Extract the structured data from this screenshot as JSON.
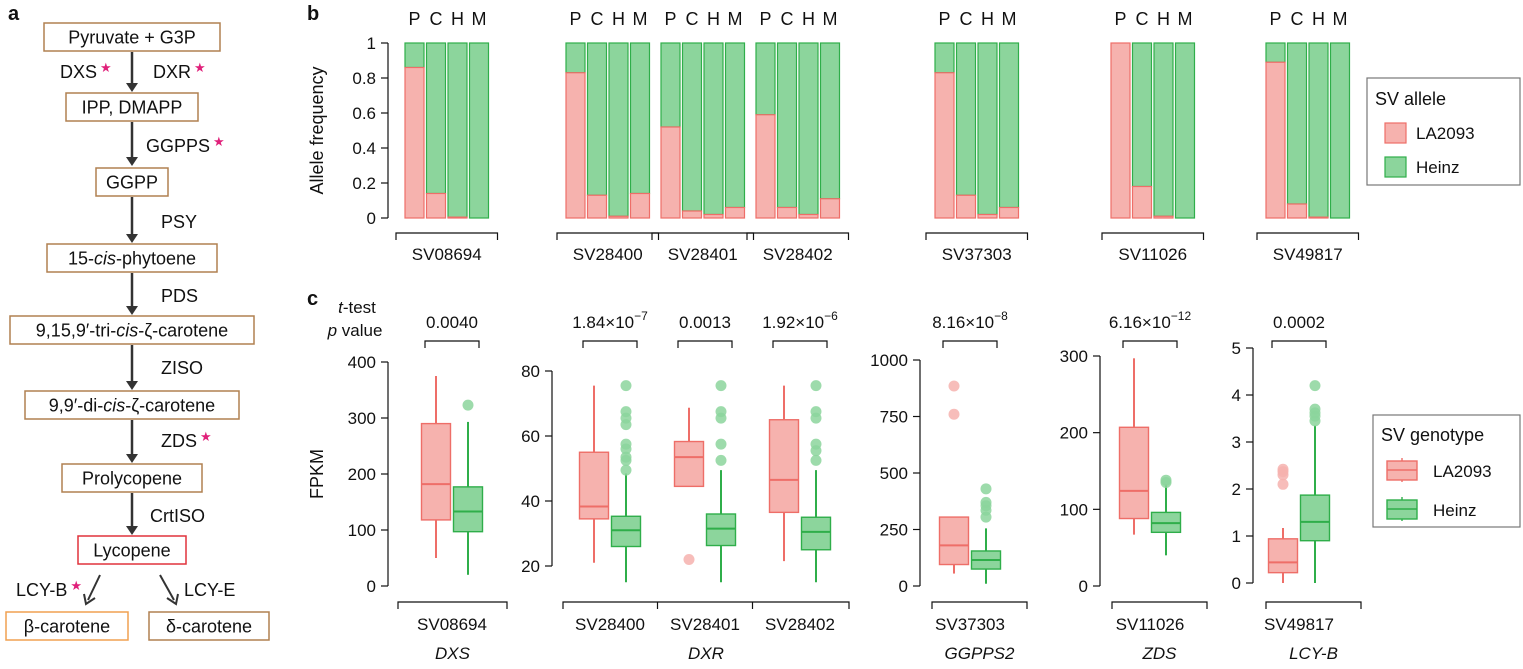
{
  "panel_labels": {
    "a": "a",
    "b": "b",
    "c": "c"
  },
  "pathway": {
    "nodes": [
      {
        "id": "pyruvate",
        "parts": [
          {
            "t": "Pyruvate + G3P"
          }
        ],
        "color": "#b08050"
      },
      {
        "id": "ipp",
        "parts": [
          {
            "t": "IPP, DMAPP"
          }
        ],
        "color": "#b08050"
      },
      {
        "id": "ggpp",
        "parts": [
          {
            "t": "GGPP"
          }
        ],
        "color": "#b08050"
      },
      {
        "id": "phytoene",
        "parts": [
          {
            "t": "15-"
          },
          {
            "t": "cis",
            "i": true
          },
          {
            "t": "-phytoene"
          }
        ],
        "color": "#b08050"
      },
      {
        "id": "tricis",
        "parts": [
          {
            "t": "9,15,9′-tri-"
          },
          {
            "t": "cis",
            "i": true
          },
          {
            "t": "-ζ-carotene"
          }
        ],
        "color": "#b08050"
      },
      {
        "id": "dicis",
        "parts": [
          {
            "t": "9,9′-di-"
          },
          {
            "t": "cis",
            "i": true
          },
          {
            "t": "-ζ-carotene"
          }
        ],
        "color": "#b08050"
      },
      {
        "id": "prolycopene",
        "parts": [
          {
            "t": "Prolycopene"
          }
        ],
        "color": "#b08050"
      },
      {
        "id": "lycopene",
        "parts": [
          {
            "t": "Lycopene"
          }
        ],
        "color": "#e0323c",
        "text_color": "#e0323c"
      },
      {
        "id": "bcarotene",
        "parts": [
          {
            "t": "β-carotene"
          }
        ],
        "color": "#f0a050",
        "text_color": "#f08a30"
      },
      {
        "id": "dcarotene",
        "parts": [
          {
            "t": "δ-carotene"
          }
        ],
        "color": "#b08050"
      }
    ],
    "enzymes": [
      {
        "label": "DXS",
        "star": true
      },
      {
        "label": "DXR",
        "star": true
      },
      {
        "label": "GGPPS",
        "star": true
      },
      {
        "label": "PSY",
        "star": false
      },
      {
        "label": "PDS",
        "star": false
      },
      {
        "label": "ZISO",
        "star": false
      },
      {
        "label": "ZDS",
        "star": true
      },
      {
        "label": "CrtISO",
        "star": false
      },
      {
        "label": "LCY-B",
        "star": true
      },
      {
        "label": "LCY-E",
        "star": false
      }
    ],
    "star_glyph": "★",
    "star_color": "#e0207a"
  },
  "colors": {
    "la2093_fill": "#f6b2ae",
    "la2093_stroke": "#ee6e68",
    "heinz_fill": "#8cd59c",
    "heinz_stroke": "#2fae4a",
    "axis": "#111111"
  },
  "chart_data": [
    {
      "type": "bar",
      "title": "",
      "stacked": true,
      "ylabel": "Allele frequency",
      "ylim": [
        0,
        1
      ],
      "yticks": [
        "0",
        "0.2",
        "0.4",
        "0.6",
        "0.8",
        "1"
      ],
      "population_labels": [
        "P",
        "C",
        "H",
        "M"
      ],
      "series": [
        {
          "name": "LA2093"
        },
        {
          "name": "Heinz"
        }
      ],
      "groups": [
        {
          "sv": "SV08694",
          "la2093": [
            0.86,
            0.14,
            0.005,
            0.0
          ]
        },
        {
          "sv": "SV28400",
          "la2093": [
            0.83,
            0.13,
            0.01,
            0.14
          ]
        },
        {
          "sv": "SV28401",
          "la2093": [
            0.52,
            0.04,
            0.02,
            0.06
          ]
        },
        {
          "sv": "SV28402",
          "la2093": [
            0.59,
            0.06,
            0.02,
            0.11
          ]
        },
        {
          "sv": "SV37303",
          "la2093": [
            0.83,
            0.13,
            0.02,
            0.06
          ]
        },
        {
          "sv": "SV11026",
          "la2093": [
            1.0,
            0.18,
            0.01,
            0.0
          ]
        },
        {
          "sv": "SV49817",
          "la2093": [
            0.89,
            0.08,
            0.005,
            0.0
          ]
        }
      ],
      "legend": {
        "title": "SV allele",
        "entries": [
          "LA2093",
          "Heinz"
        ],
        "position": "right"
      }
    },
    {
      "type": "box",
      "ylabel": "FPKM",
      "test_label_line1_italic": "t",
      "test_label_line1": "-test",
      "test_label_line2_italic": "p",
      "test_label_line2": " value",
      "panels": [
        {
          "gene": "DXS",
          "ylim": [
            0,
            400
          ],
          "yticks": [
            "0",
            "100",
            "200",
            "300",
            "400"
          ],
          "svs": [
            {
              "sv": "SV08694",
              "p": {
                "base": "0.0040",
                "exp": ""
              },
              "la2093": {
                "min": 50,
                "q1": 118,
                "median": 182,
                "q3": 290,
                "max": 375,
                "outliers": []
              },
              "heinz": {
                "min": 20,
                "q1": 97,
                "median": 133,
                "q3": 177,
                "max": 293,
                "outliers": [
                  323
                ]
              }
            }
          ]
        },
        {
          "gene": "DXR",
          "ylim": [
            14,
            80
          ],
          "yticks": [
            "20",
            "40",
            "60",
            "80"
          ],
          "svs": [
            {
              "sv": "SV28400",
              "p": {
                "base": "1.84×10",
                "exp": "−7"
              },
              "la2093": {
                "min": 21,
                "q1": 34.5,
                "median": 38.3,
                "q3": 55,
                "max": 75.5,
                "outliers": []
              },
              "heinz": {
                "min": 15,
                "q1": 26,
                "median": 31,
                "q3": 35.3,
                "max": 48.5,
                "outliers": [
                  49.5,
                  52.5,
                  53.5,
                  56,
                  57.5,
                  63.5,
                  65.5,
                  67.5,
                  75.5
                ]
              }
            },
            {
              "sv": "SV28401",
              "p": {
                "base": "0.0013",
                "exp": ""
              },
              "la2093": {
                "min": 44.5,
                "q1": 44.5,
                "median": 53.5,
                "q3": 58.3,
                "max": 68.7,
                "outliers": [
                  22
                ]
              },
              "heinz": {
                "min": 15,
                "q1": 26.3,
                "median": 31.5,
                "q3": 36,
                "max": 49.5,
                "outliers": [
                  52.5,
                  57.5,
                  65.5,
                  67.5,
                  75.5
                ]
              }
            },
            {
              "sv": "SV28402",
              "p": {
                "base": "1.92×10",
                "exp": "−6"
              },
              "la2093": {
                "min": 21.5,
                "q1": 36.5,
                "median": 46.5,
                "q3": 65,
                "max": 75.5,
                "outliers": []
              },
              "heinz": {
                "min": 15,
                "q1": 25,
                "median": 30.5,
                "q3": 35,
                "max": 49.5,
                "outliers": [
                  52.5,
                  55.5,
                  57.5,
                  65.5,
                  67.5,
                  75.5
                ]
              }
            }
          ]
        },
        {
          "gene": "GGPPS2",
          "ylim": [
            0,
            1000
          ],
          "yticks": [
            "0",
            "250",
            "500",
            "750",
            "1000"
          ],
          "svs": [
            {
              "sv": "SV37303",
              "p": {
                "base": "8.16×10",
                "exp": "−8"
              },
              "la2093": {
                "min": 55,
                "q1": 95,
                "median": 180,
                "q3": 305,
                "max": 305,
                "outliers": [
                  760,
                  885
                ]
              },
              "heinz": {
                "min": 10,
                "q1": 75,
                "median": 115,
                "q3": 155,
                "max": 255,
                "outliers": [
                  305,
                  335,
                  355,
                  370,
                  430
                ]
              }
            }
          ]
        },
        {
          "gene": "ZDS",
          "ylim": [
            0,
            300
          ],
          "yticks": [
            "0",
            "100",
            "200",
            "300"
          ],
          "svs": [
            {
              "sv": "SV11026",
              "p": {
                "base": "6.16×10",
                "exp": "−12"
              },
              "la2093": {
                "min": 67,
                "q1": 88,
                "median": 124,
                "q3": 207,
                "max": 297,
                "outliers": []
              },
              "heinz": {
                "min": 40,
                "q1": 70,
                "median": 82,
                "q3": 96,
                "max": 133,
                "outliers": [
                  135,
                  138
                ]
              }
            }
          ]
        },
        {
          "gene": "LCY-B",
          "ylim": [
            0,
            5
          ],
          "yticks": [
            "0",
            "1",
            "2",
            "3",
            "4",
            "5"
          ],
          "svs": [
            {
              "sv": "SV49817",
              "p": {
                "base": "0.0002",
                "exp": ""
              },
              "la2093": {
                "min": 0,
                "q1": 0.22,
                "median": 0.44,
                "q3": 0.94,
                "max": 1.17,
                "outliers": [
                  2.1,
                  2.3,
                  2.37,
                  2.42
                ]
              },
              "heinz": {
                "min": 0,
                "q1": 0.9,
                "median": 1.3,
                "q3": 1.87,
                "max": 3.35,
                "outliers": [
                  3.45,
                  3.55,
                  3.62,
                  3.7,
                  4.2
                ]
              }
            }
          ]
        }
      ],
      "legend": {
        "title": "SV genotype",
        "entries": [
          "LA2093",
          "Heinz"
        ],
        "position": "right"
      }
    }
  ]
}
